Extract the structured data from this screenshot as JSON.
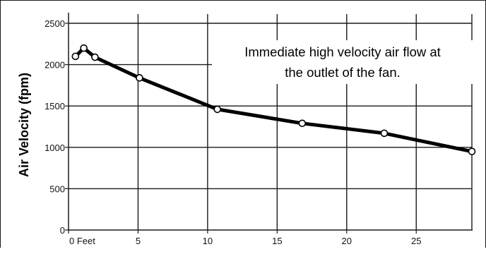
{
  "chart_data": {
    "type": "line",
    "ylabel": "Air Velocity (fpm)",
    "xlabel": "",
    "xlim": [
      0,
      29
    ],
    "ylim": [
      0,
      2500
    ],
    "grid": true,
    "x_ticks": [
      {
        "value": 0,
        "label": "0 Feet"
      },
      {
        "value": 5,
        "label": "5"
      },
      {
        "value": 10,
        "label": "10"
      },
      {
        "value": 15,
        "label": "15"
      },
      {
        "value": 20,
        "label": "20"
      },
      {
        "value": 25,
        "label": "25"
      }
    ],
    "y_ticks": [
      {
        "value": 0,
        "label": "0"
      },
      {
        "value": 500,
        "label": "500"
      },
      {
        "value": 1000,
        "label": "1000"
      },
      {
        "value": 1500,
        "label": "1500"
      },
      {
        "value": 2000,
        "label": "2000"
      },
      {
        "value": 2500,
        "label": "2500"
      }
    ],
    "series": [
      {
        "points": [
          {
            "x": 0.5,
            "y": 2100
          },
          {
            "x": 1.1,
            "y": 2200
          },
          {
            "x": 1.9,
            "y": 2090
          },
          {
            "x": 5.1,
            "y": 1840
          },
          {
            "x": 10.7,
            "y": 1460
          },
          {
            "x": 16.8,
            "y": 1290
          },
          {
            "x": 22.7,
            "y": 1170
          },
          {
            "x": 29.0,
            "y": 950
          }
        ],
        "color": "#000000"
      }
    ],
    "annotation": {
      "lines": [
        "Immediate high velocity air flow at",
        "the outlet of the fan."
      ]
    }
  }
}
